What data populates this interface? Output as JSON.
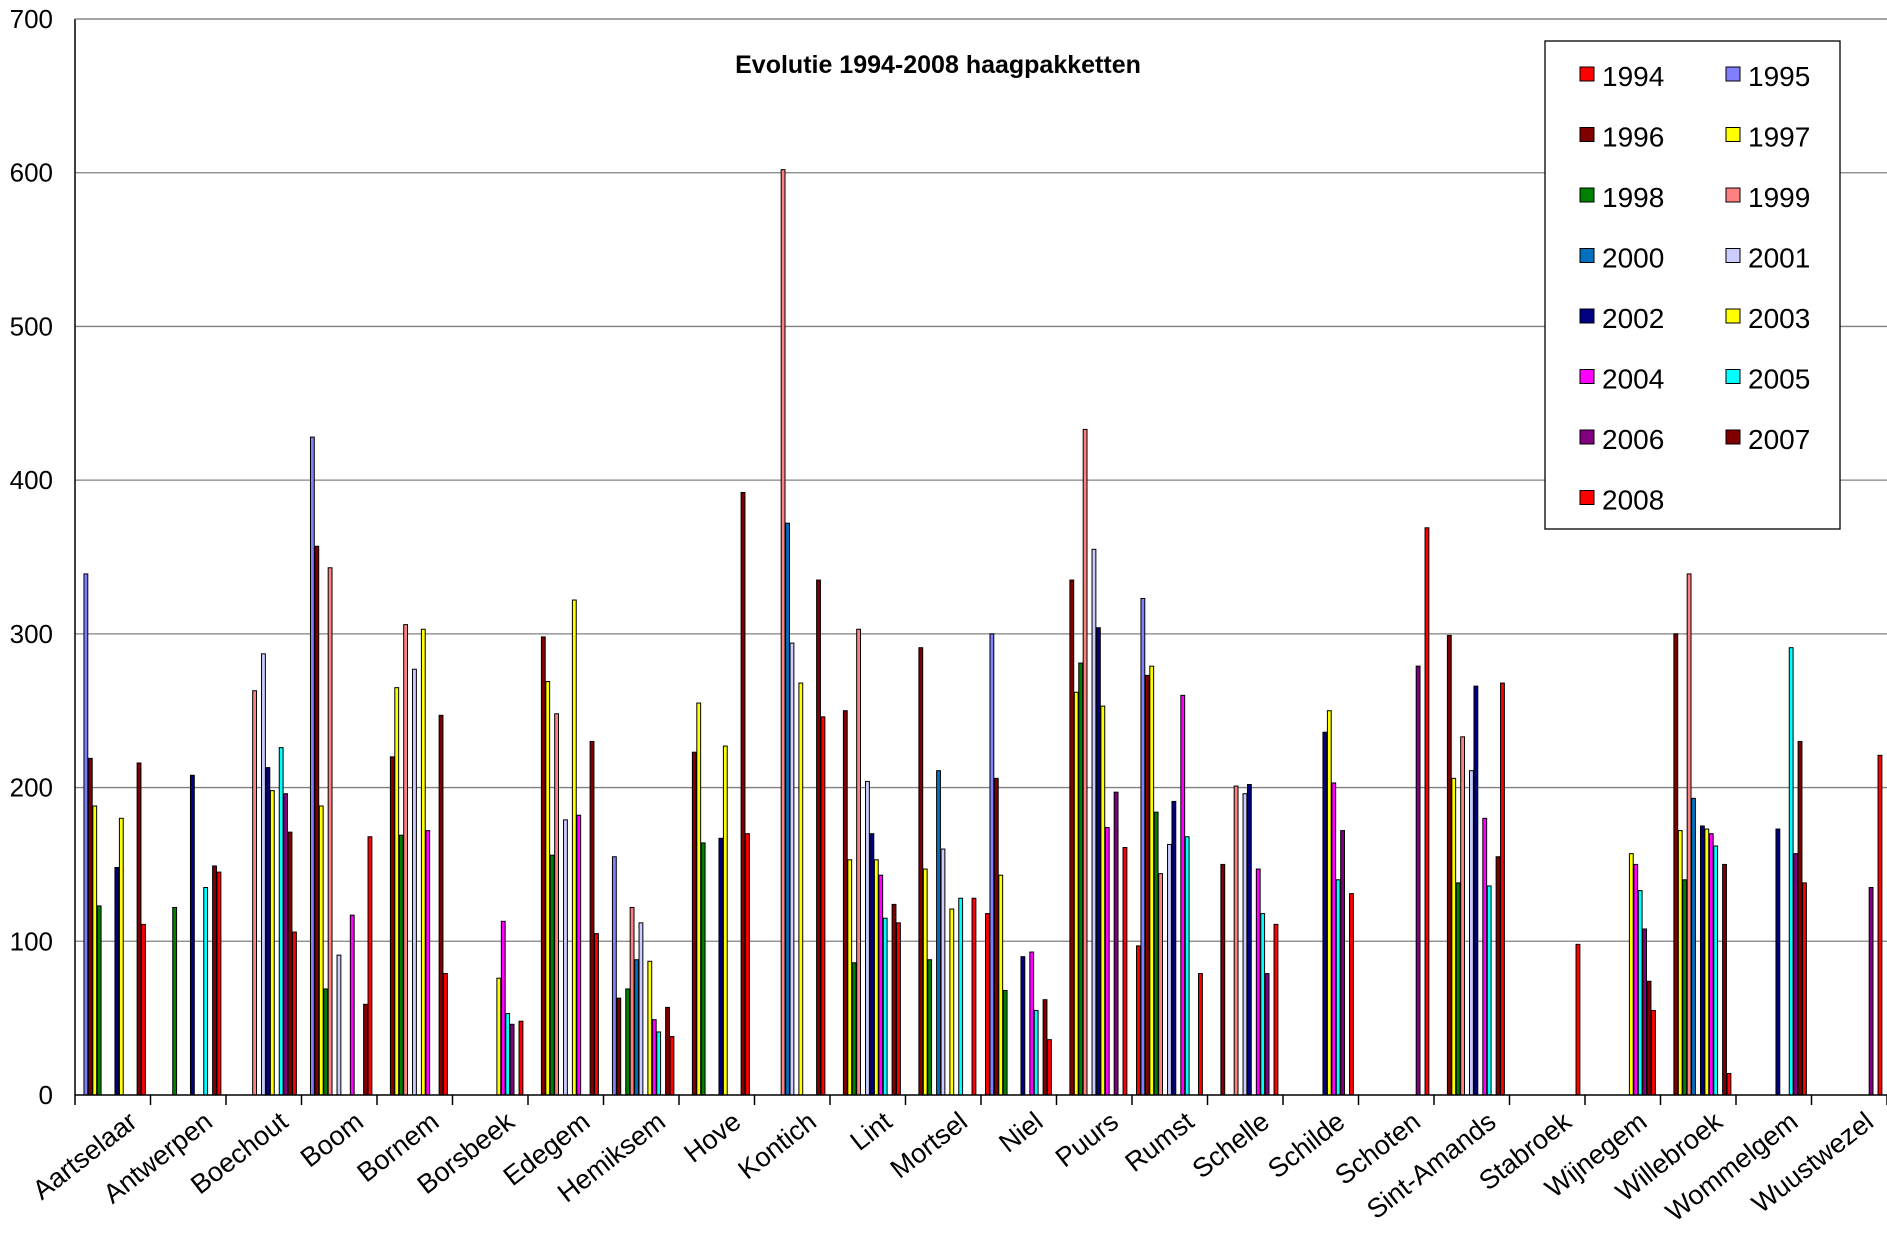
{
  "chart_data": {
    "type": "bar",
    "title": "Evolutie 1994-2008 haagpakketten",
    "xlabel": "",
    "ylabel": "",
    "ylim": [
      0,
      700
    ],
    "yticks": [
      0,
      100,
      200,
      300,
      400,
      500,
      600,
      700
    ],
    "grid": true,
    "legend_position": "top-right",
    "categories": [
      "Aartselaar",
      "Antwerpen",
      "Boechout",
      "Boom",
      "Bornem",
      "Borsbeek",
      "Edegem",
      "Hemiksem",
      "Hove",
      "Kontich",
      "Lint",
      "Mortsel",
      "Niel",
      "Puurs",
      "Rumst",
      "Schelle",
      "Schilde",
      "Schoten",
      "Sint-Amands",
      "Stabroek",
      "Wijnegem",
      "Willebroek",
      "Wommelgem",
      "Wuustwezel"
    ],
    "series": [
      {
        "name": "1994",
        "color": "#ff0000",
        "values": [
          0,
          0,
          0,
          0,
          0,
          0,
          0,
          0,
          0,
          0,
          0,
          0,
          118,
          0,
          97,
          0,
          0,
          0,
          0,
          0,
          0,
          0,
          0,
          0
        ]
      },
      {
        "name": "1995",
        "color": "#8080ff",
        "values": [
          339,
          0,
          0,
          428,
          0,
          0,
          0,
          155,
          0,
          0,
          0,
          0,
          300,
          0,
          323,
          0,
          0,
          0,
          0,
          0,
          0,
          0,
          0,
          0
        ]
      },
      {
        "name": "1996",
        "color": "#800000",
        "values": [
          219,
          0,
          0,
          357,
          220,
          0,
          298,
          63,
          223,
          0,
          250,
          291,
          206,
          335,
          273,
          150,
          0,
          0,
          299,
          0,
          0,
          300,
          0,
          0
        ]
      },
      {
        "name": "1997",
        "color": "#ffff00",
        "values": [
          188,
          0,
          0,
          188,
          265,
          0,
          269,
          0,
          255,
          0,
          153,
          147,
          143,
          262,
          279,
          0,
          0,
          0,
          206,
          0,
          0,
          172,
          0,
          0
        ]
      },
      {
        "name": "1998",
        "color": "#008000",
        "values": [
          123,
          122,
          0,
          69,
          169,
          0,
          156,
          69,
          164,
          0,
          86,
          88,
          68,
          281,
          184,
          0,
          0,
          0,
          138,
          0,
          0,
          140,
          0,
          0
        ]
      },
      {
        "name": "1999",
        "color": "#ff8080",
        "values": [
          0,
          0,
          263,
          343,
          306,
          0,
          248,
          122,
          0,
          602,
          303,
          0,
          0,
          433,
          144,
          201,
          0,
          0,
          233,
          0,
          0,
          339,
          0,
          0
        ]
      },
      {
        "name": "2000",
        "color": "#0070c0",
        "values": [
          0,
          0,
          0,
          0,
          0,
          0,
          0,
          88,
          0,
          372,
          0,
          211,
          0,
          0,
          0,
          0,
          0,
          0,
          0,
          0,
          0,
          193,
          0,
          0
        ]
      },
      {
        "name": "2001",
        "color": "#ccccff",
        "values": [
          0,
          0,
          287,
          91,
          277,
          0,
          179,
          112,
          0,
          294,
          204,
          160,
          0,
          355,
          163,
          196,
          0,
          0,
          211,
          0,
          0,
          0,
          0,
          0
        ]
      },
      {
        "name": "2002",
        "color": "#000080",
        "values": [
          148,
          208,
          213,
          0,
          0,
          0,
          0,
          0,
          167,
          0,
          170,
          0,
          90,
          304,
          191,
          202,
          236,
          0,
          266,
          0,
          0,
          175,
          173,
          0
        ]
      },
      {
        "name": "2003",
        "color": "#ffff00",
        "values": [
          180,
          0,
          198,
          0,
          303,
          76,
          322,
          87,
          227,
          268,
          153,
          121,
          0,
          253,
          0,
          0,
          250,
          0,
          0,
          0,
          157,
          173,
          0,
          0
        ]
      },
      {
        "name": "2004",
        "color": "#ff00ff",
        "values": [
          0,
          0,
          0,
          117,
          172,
          113,
          182,
          49,
          0,
          0,
          143,
          0,
          93,
          174,
          260,
          147,
          203,
          0,
          180,
          0,
          150,
          170,
          0,
          0
        ]
      },
      {
        "name": "2005",
        "color": "#00ffff",
        "values": [
          0,
          135,
          226,
          0,
          0,
          53,
          0,
          41,
          0,
          0,
          115,
          128,
          55,
          0,
          168,
          118,
          140,
          0,
          136,
          0,
          133,
          162,
          291,
          0
        ]
      },
      {
        "name": "2006",
        "color": "#800080",
        "values": [
          0,
          0,
          196,
          0,
          0,
          46,
          0,
          0,
          0,
          0,
          0,
          0,
          0,
          197,
          0,
          79,
          172,
          279,
          0,
          0,
          108,
          0,
          157,
          135
        ]
      },
      {
        "name": "2007",
        "color": "#800000",
        "values": [
          216,
          149,
          171,
          59,
          247,
          0,
          230,
          57,
          392,
          335,
          124,
          0,
          62,
          0,
          0,
          0,
          0,
          0,
          155,
          0,
          74,
          150,
          230,
          0
        ]
      },
      {
        "name": "2008",
        "color": "#ff0000",
        "values": [
          111,
          145,
          106,
          168,
          79,
          48,
          105,
          38,
          170,
          246,
          112,
          128,
          36,
          161,
          79,
          111,
          131,
          369,
          268,
          98,
          55,
          14,
          138,
          221
        ]
      }
    ]
  },
  "page": {
    "background": "#ffffff",
    "grid_color": "#808080",
    "axis_color": "#000000"
  }
}
